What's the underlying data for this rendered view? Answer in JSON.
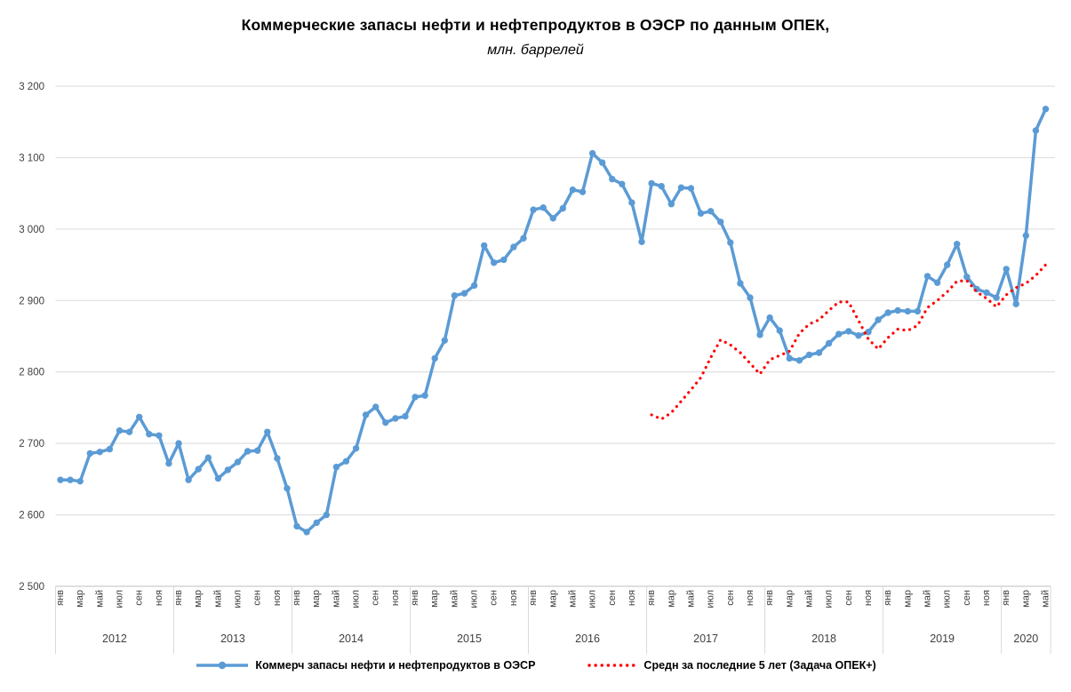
{
  "header": {
    "title": "Коммерческие запасы нефти и нефтепродуктов в ОЭСР по данным ОПЕК,",
    "subtitle": "млн. баррелей"
  },
  "colors": {
    "stocks_line": "#5B9BD5",
    "average_line": "#FF0000",
    "gridline": "#D9D9D9",
    "axis_line": "#BFBFBF",
    "tick_text": "#404040"
  },
  "chart_data": {
    "type": "line",
    "title": "Коммерческие запасы нефти и нефтепродуктов в ОЭСР по данным ОПЕК,",
    "subtitle": "млн. баррелей",
    "grid": "horizontal",
    "legend_position": "bottom",
    "ylim": [
      2500,
      3200
    ],
    "y_ticks": [
      2500,
      2600,
      2700,
      2800,
      2900,
      3000,
      3100,
      3200
    ],
    "y_tick_labels": [
      "2 500",
      "2 600",
      "2 700",
      "2 800",
      "2 900",
      "3 000",
      "3 100",
      "3 200"
    ],
    "x_month_tick_labels": [
      "янв",
      "мар",
      "май",
      "июл",
      "сен",
      "ноя"
    ],
    "x_month_tick_labels_2020": [
      "янв",
      "мар",
      "май"
    ],
    "years": [
      "2012",
      "2013",
      "2014",
      "2015",
      "2016",
      "2017",
      "2018",
      "2019",
      "2020"
    ],
    "x_start": "янв 2012",
    "x_end": "май 2020",
    "months_total": 101,
    "series": [
      {
        "name": "Коммерч запасы нефти и нефтепродуктов в ОЭСР",
        "color": "#5B9BD5",
        "style": "solid-with-markers",
        "start_month_index": 0,
        "values": [
          2649,
          2649,
          2647,
          2686,
          2688,
          2692,
          2718,
          2716,
          2737,
          2713,
          2711,
          2672,
          2700,
          2649,
          2664,
          2680,
          2651,
          2663,
          2674,
          2689,
          2690,
          2716,
          2679,
          2637,
          2584,
          2576,
          2589,
          2600,
          2667,
          2675,
          2693,
          2740,
          2751,
          2729,
          2735,
          2738,
          2765,
          2767,
          2819,
          2844,
          2907,
          2910,
          2921,
          2977,
          2953,
          2957,
          2975,
          2987,
          3027,
          3030,
          3015,
          3029,
          3055,
          3052,
          3106,
          3093,
          3070,
          3063,
          3037,
          2982,
          3064,
          3060,
          3035,
          3058,
          3057,
          3022,
          3025,
          3010,
          2981,
          2924,
          2904,
          2852,
          2876,
          2858,
          2819,
          2816,
          2824,
          2827,
          2840,
          2853,
          2857,
          2851,
          2856,
          2873,
          2883,
          2886,
          2885,
          2885,
          2934,
          2925,
          2950,
          2979,
          2933,
          2916,
          2911,
          2904,
          2944,
          2895,
          2991,
          3138,
          3168
        ]
      },
      {
        "name": "Средн за последние 5 лет (Задача ОПЕК+)",
        "color": "#FF0000",
        "style": "dotted",
        "start_month_index": 60,
        "values": [
          2740,
          2734,
          2743,
          2759,
          2775,
          2792,
          2820,
          2845,
          2838,
          2827,
          2812,
          2797,
          2817,
          2823,
          2829,
          2854,
          2867,
          2873,
          2886,
          2898,
          2898,
          2872,
          2846,
          2832,
          2848,
          2860,
          2858,
          2865,
          2890,
          2900,
          2912,
          2927,
          2928,
          2912,
          2903,
          2891,
          2908,
          2918,
          2924,
          2935,
          2950
        ]
      }
    ]
  },
  "legend": {
    "stocks_label": "Коммерч запасы нефти и нефтепродуктов в ОЭСР",
    "average_label": "Средн за последние 5 лет (Задача ОПЕК+)"
  }
}
